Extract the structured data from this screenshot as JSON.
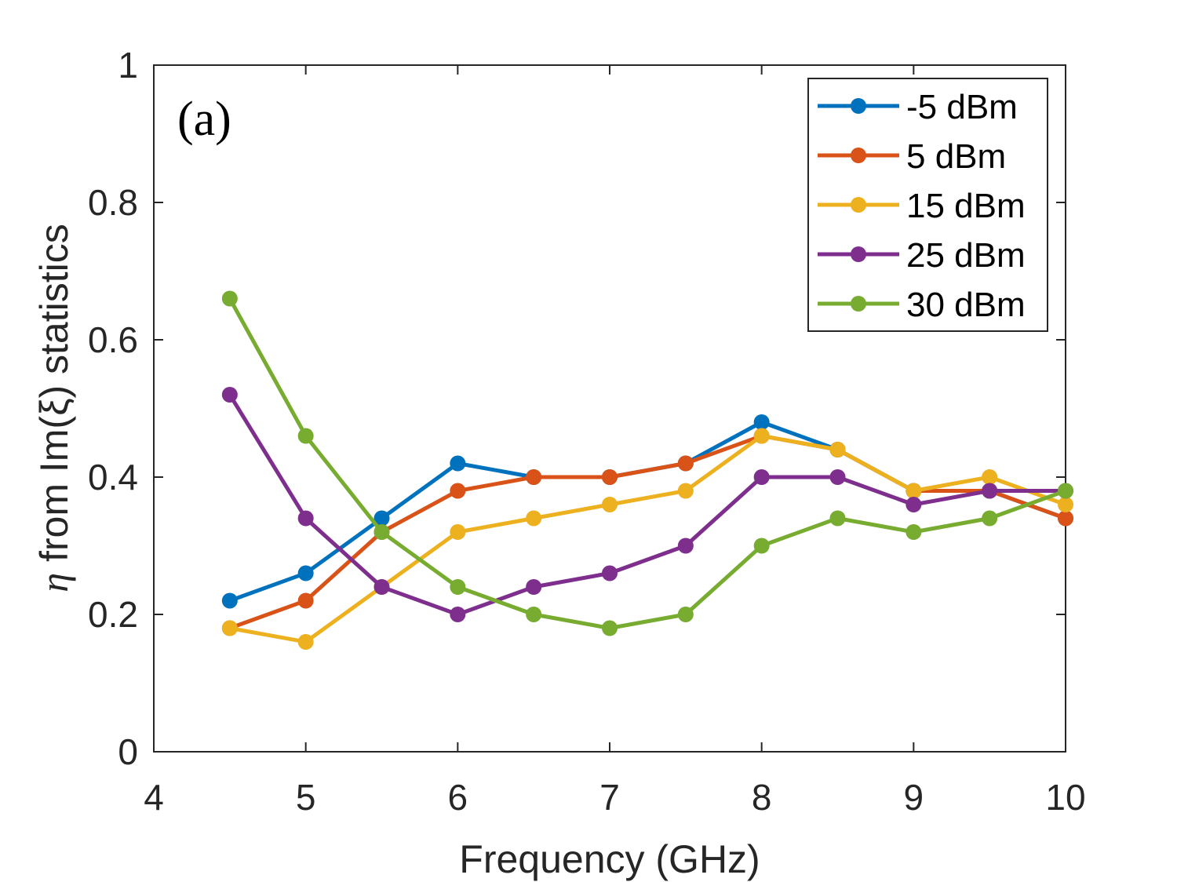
{
  "chart_data": {
    "type": "line",
    "title": "",
    "annotation": "(a)",
    "xlabel": "Frequency (GHz)",
    "ylabel_prefix": "η",
    "ylabel": "from Im(ξ) statistics",
    "xlim": [
      4,
      10
    ],
    "ylim": [
      0,
      1
    ],
    "xticks": [
      4,
      5,
      6,
      7,
      8,
      9,
      10
    ],
    "xtick_labels": [
      "4",
      "5",
      "6",
      "7",
      "8",
      "9",
      "10"
    ],
    "yticks": [
      0,
      0.2,
      0.4,
      0.6,
      0.8,
      1
    ],
    "ytick_labels": [
      "0",
      "0.2",
      "0.4",
      "0.6",
      "0.8",
      "1"
    ],
    "grid": false,
    "legend_position": "top-right",
    "x": [
      4.5,
      5,
      5.5,
      6,
      6.5,
      7,
      7.5,
      8,
      8.5,
      9,
      9.5,
      10
    ],
    "series": [
      {
        "name": "-5 dBm",
        "color": "#0072BD",
        "values": [
          0.22,
          0.26,
          0.34,
          0.42,
          0.4,
          0.4,
          0.42,
          0.48,
          0.44,
          0.38,
          0.38,
          0.34
        ]
      },
      {
        "name": "5 dBm",
        "color": "#D95319",
        "values": [
          0.18,
          0.22,
          0.32,
          0.38,
          0.4,
          0.4,
          0.42,
          0.46,
          0.44,
          0.38,
          0.38,
          0.34
        ]
      },
      {
        "name": "15 dBm",
        "color": "#EDB120",
        "values": [
          0.18,
          0.16,
          0.24,
          0.32,
          0.34,
          0.36,
          0.38,
          0.46,
          0.44,
          0.38,
          0.4,
          0.36
        ]
      },
      {
        "name": "25 dBm",
        "color": "#7E2F8E",
        "values": [
          0.52,
          0.34,
          0.24,
          0.2,
          0.24,
          0.26,
          0.3,
          0.4,
          0.4,
          0.36,
          0.38,
          0.38
        ]
      },
      {
        "name": "30 dBm",
        "color": "#77AC30",
        "values": [
          0.66,
          0.46,
          0.32,
          0.24,
          0.2,
          0.18,
          0.2,
          0.3,
          0.34,
          0.32,
          0.34,
          0.38
        ]
      }
    ]
  }
}
